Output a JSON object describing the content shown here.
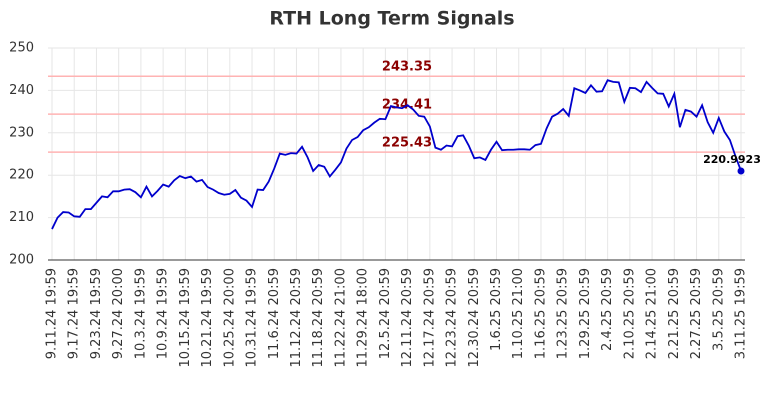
{
  "chart_data": {
    "type": "line",
    "title": "RTH Long Term Signals",
    "categories": [
      "9.11.24 19:59",
      null,
      null,
      null,
      "9.17.24 19:59",
      null,
      null,
      null,
      "9.23.24 19:59",
      null,
      null,
      null,
      "9.27.24 20:00",
      null,
      null,
      null,
      "10.3.24 19:59",
      null,
      null,
      null,
      "10.9.24 19:59",
      null,
      null,
      null,
      "10.15.24 19:59",
      null,
      null,
      null,
      "10.21.24 19:59",
      null,
      null,
      null,
      "10.25.24 20:00",
      null,
      null,
      null,
      "10.31.24 19:59",
      null,
      null,
      null,
      "11.6.24 20:59",
      null,
      null,
      null,
      "11.12.24 20:59",
      null,
      null,
      null,
      "11.18.24 20:59",
      null,
      null,
      null,
      "11.22.24 21:00",
      null,
      null,
      null,
      "11.29.24 18:00",
      null,
      null,
      null,
      "12.5.24 20:59",
      null,
      null,
      null,
      "12.11.24 20:59",
      null,
      null,
      null,
      "12.17.24 20:59",
      null,
      null,
      null,
      "12.23.24 20:59",
      null,
      null,
      null,
      "12.30.24 20:59",
      null,
      null,
      null,
      "1.6.25 20:59",
      null,
      null,
      null,
      "1.10.25 21:00",
      null,
      null,
      null,
      "1.16.25 20:59",
      null,
      null,
      null,
      "1.23.25 20:59",
      null,
      null,
      null,
      "1.29.25 20:59",
      null,
      null,
      null,
      "2.4.25 20:59",
      null,
      null,
      null,
      "2.10.25 20:59",
      null,
      null,
      null,
      "2.14.25 21:00",
      null,
      null,
      null,
      "2.21.25 20:59",
      null,
      null,
      null,
      "2.27.25 20:59",
      null,
      null,
      null,
      "3.5.25 20:59",
      null,
      null,
      null,
      "3.11.25 19:59"
    ],
    "series": [
      {
        "color": "#0000cc",
        "values": [
          207.3,
          210,
          211.3,
          211.2,
          210.3,
          210.2,
          212,
          212,
          213.5,
          215,
          214.8,
          216.2,
          216.2,
          216.6,
          216.7,
          216,
          214.8,
          217.3,
          215,
          216.3,
          217.8,
          217.3,
          218.8,
          219.8,
          219.3,
          219.7,
          218.5,
          218.9,
          217.2,
          216.6,
          215.8,
          215.4,
          215.6,
          216.5,
          214.7,
          214,
          212.5,
          216.6,
          216.5,
          218.5,
          221.6,
          225.1,
          224.8,
          225.2,
          225.1,
          226.7,
          224.2,
          221,
          222.4,
          222,
          219.7,
          221.3,
          223,
          226.3,
          228.3,
          229,
          230.6,
          231.3,
          232.4,
          233.3,
          233.2,
          236.3,
          236,
          235.8,
          236.5,
          235.5,
          234,
          233.8,
          231.5,
          226.5,
          226,
          227,
          226.8,
          229.2,
          229.4,
          227,
          224,
          224.2,
          223.6,
          226,
          227.9,
          225.9,
          226,
          226,
          226.1,
          226.1,
          226,
          227.1,
          227.4,
          231,
          233.8,
          234.5,
          235.6,
          234,
          240.5,
          240,
          239.4,
          241.2,
          239.7,
          239.8,
          242.4,
          242,
          241.9,
          237.3,
          240.6,
          240.5,
          239.6,
          242,
          240.6,
          239.3,
          239.2,
          236.2,
          239.2,
          231.3,
          235.4,
          235,
          233.8,
          236.5,
          232.5,
          230,
          233.5,
          230.3,
          228.3,
          224.5,
          220.9923
        ]
      }
    ],
    "levels": [
      243.35,
      234.41,
      225.43
    ],
    "level_color": "#8b0000",
    "ylim": [
      200,
      250
    ],
    "yticks": [
      200,
      210,
      220,
      230,
      240,
      250
    ],
    "grid": true
  }
}
